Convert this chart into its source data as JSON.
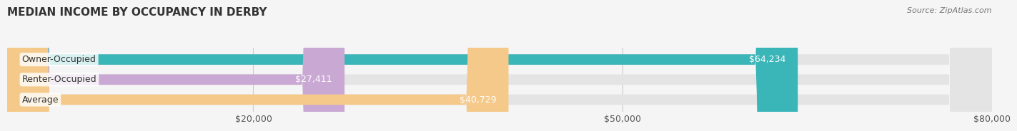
{
  "title": "MEDIAN INCOME BY OCCUPANCY IN DERBY",
  "source": "Source: ZipAtlas.com",
  "categories": [
    "Owner-Occupied",
    "Renter-Occupied",
    "Average"
  ],
  "values": [
    64234,
    27411,
    40729
  ],
  "bar_colors": [
    "#3ab5b8",
    "#c9a8d4",
    "#f5c98a"
  ],
  "bar_bg_color": "#e4e4e4",
  "bar_labels": [
    "$64,234",
    "$27,411",
    "$40,729"
  ],
  "xlim": [
    0,
    80000
  ],
  "xticks": [
    0,
    20000,
    50000,
    80000
  ],
  "xtick_labels": [
    "",
    "$20,000",
    "$50,000",
    "$80,000"
  ],
  "title_fontsize": 11,
  "label_fontsize": 9,
  "tick_fontsize": 9,
  "bg_color": "#f5f5f5",
  "bar_height": 0.52,
  "bar_label_color_inside": "#ffffff",
  "bar_label_color_outside": "#555555",
  "grid_color": "#cccccc",
  "title_color": "#333333",
  "source_color": "#777777"
}
